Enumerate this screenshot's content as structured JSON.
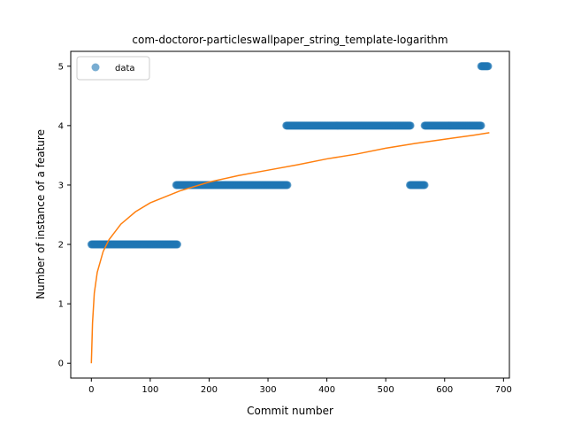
{
  "chart_data": {
    "type": "scatter",
    "title": "com-doctoror-particleswallpaper_string_template-logarithm",
    "xlabel": "Commit number",
    "ylabel": "Number of instance of a feature",
    "xlim": [
      -35,
      710
    ],
    "ylim": [
      -0.25,
      5.25
    ],
    "xticks": [
      0,
      100,
      200,
      300,
      400,
      500,
      600,
      700
    ],
    "yticks": [
      0,
      1,
      2,
      3,
      4,
      5
    ],
    "grid": false,
    "legend": {
      "placement": "upper-left",
      "entries": [
        "data"
      ]
    },
    "series": [
      {
        "name": "data",
        "kind": "scatter",
        "color": "#1f77b4",
        "segments": [
          {
            "x_start": 0,
            "x_end": 146,
            "y": 2
          },
          {
            "x_start": 144,
            "x_end": 333,
            "y": 3
          },
          {
            "x_start": 331,
            "x_end": 542,
            "y": 4
          },
          {
            "x_start": 541,
            "x_end": 566,
            "y": 3
          },
          {
            "x_start": 566,
            "x_end": 662,
            "y": 4
          },
          {
            "x_start": 662,
            "x_end": 674,
            "y": 5
          }
        ]
      },
      {
        "kind": "line",
        "color": "#ff7f0e",
        "model": "logarithmic fit",
        "x_range": [
          0,
          676
        ],
        "points": [
          [
            0,
            0
          ],
          [
            2,
            0.68
          ],
          [
            5,
            1.18
          ],
          [
            10,
            1.53
          ],
          [
            20,
            1.88
          ],
          [
            30,
            2.08
          ],
          [
            50,
            2.34
          ],
          [
            75,
            2.55
          ],
          [
            100,
            2.7
          ],
          [
            150,
            2.9
          ],
          [
            200,
            3.05
          ],
          [
            250,
            3.16
          ],
          [
            300,
            3.25
          ],
          [
            350,
            3.34
          ],
          [
            400,
            3.44
          ],
          [
            450,
            3.52
          ],
          [
            500,
            3.62
          ],
          [
            550,
            3.7
          ],
          [
            600,
            3.77
          ],
          [
            650,
            3.84
          ],
          [
            676,
            3.88
          ]
        ]
      }
    ]
  }
}
